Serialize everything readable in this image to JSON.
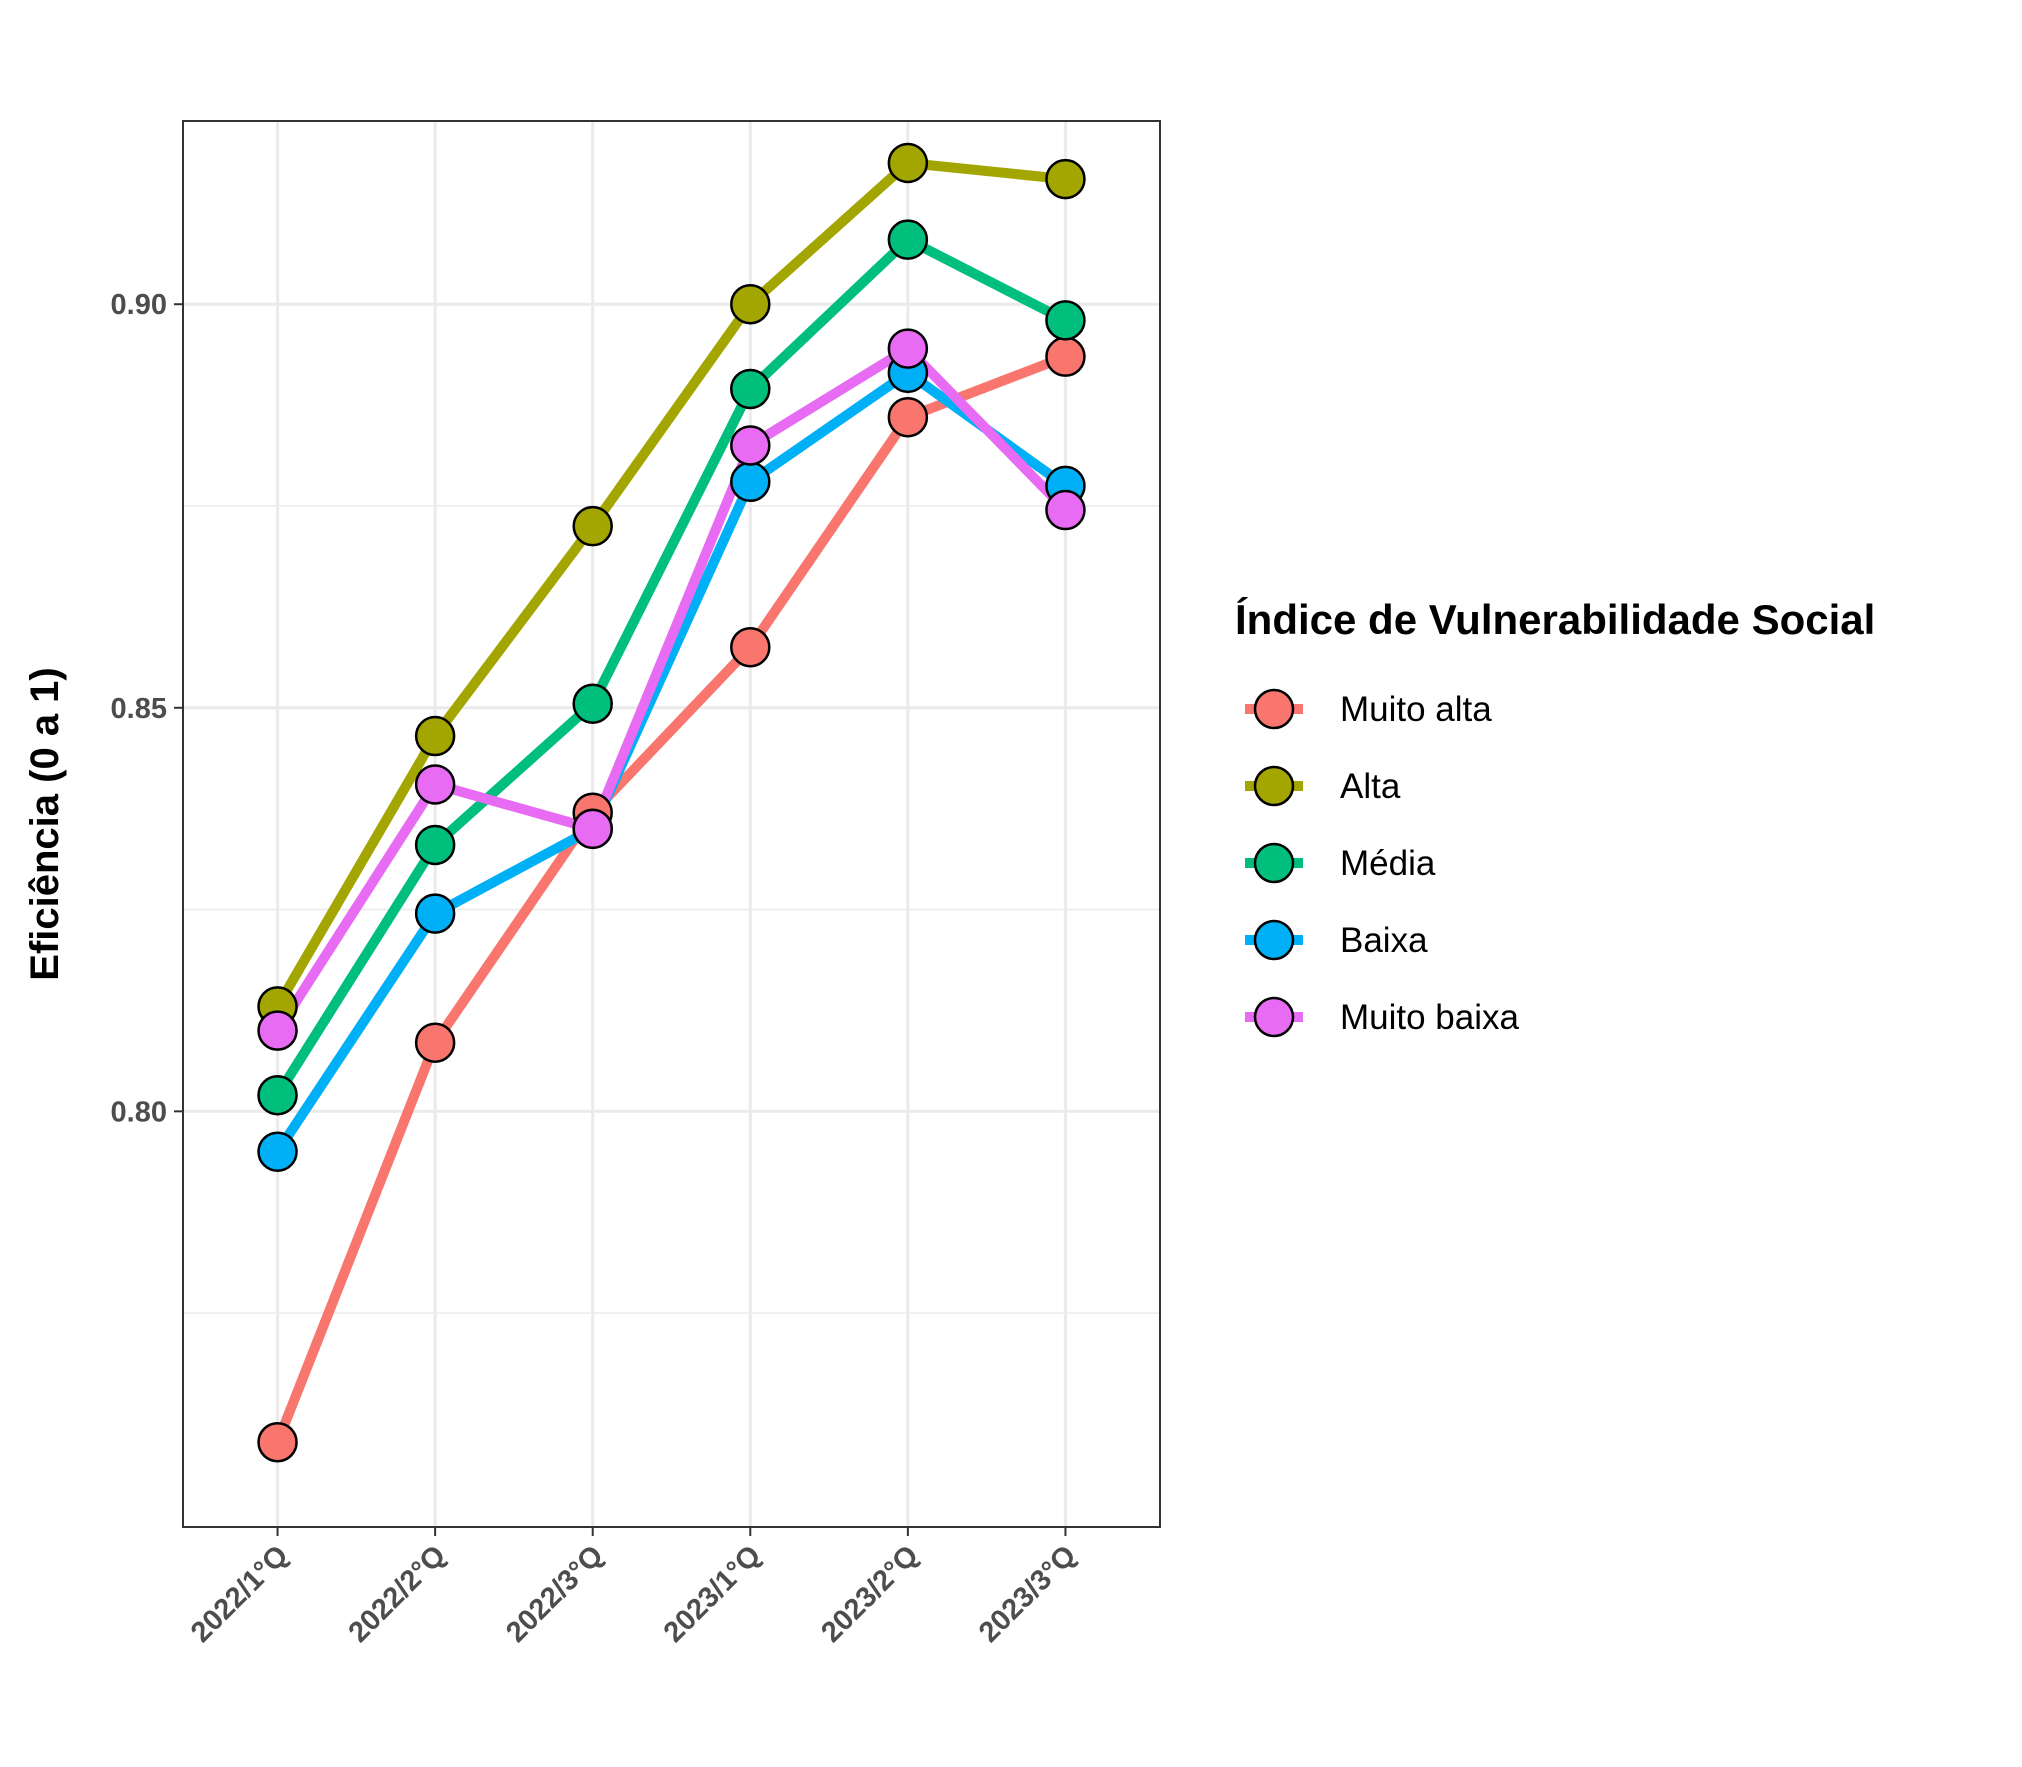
{
  "chart_data": {
    "type": "line",
    "title": "",
    "xlabel": "",
    "ylabel": "Eficiência (0 a 1)",
    "categories": [
      "2022/1°Q",
      "2022/2°Q",
      "2022/3°Q",
      "2023/1°Q",
      "2023/2°Q",
      "2023/3°Q"
    ],
    "ylim": [
      0.7485,
      0.9227
    ],
    "yticks": [
      0.8,
      0.85,
      0.9
    ],
    "yticks_labels": [
      "0.80",
      "0.85",
      "0.90"
    ],
    "grid": true,
    "legend": {
      "title": "Índice de Vulnerabilidade Social",
      "position": "right"
    },
    "series": [
      {
        "name": "Muito alta",
        "color": "#F8766D",
        "values": [
          0.759,
          0.8085,
          0.837,
          0.8575,
          0.886,
          0.8935
        ]
      },
      {
        "name": "Alta",
        "color": "#A3A500",
        "values": [
          0.813,
          0.8465,
          0.8725,
          0.9,
          0.9175,
          0.9155
        ]
      },
      {
        "name": "Média",
        "color": "#00BF7D",
        "values": [
          0.802,
          0.833,
          0.8505,
          0.8895,
          0.908,
          0.898
        ]
      },
      {
        "name": "Baixa",
        "color": "#00B0F6",
        "values": [
          0.795,
          0.8245,
          0.835,
          0.878,
          0.8915,
          0.8775
        ]
      },
      {
        "name": "Muito baixa",
        "color": "#E76BF3",
        "values": [
          0.81,
          0.8405,
          0.835,
          0.8825,
          0.8945,
          0.8745
        ]
      }
    ]
  }
}
